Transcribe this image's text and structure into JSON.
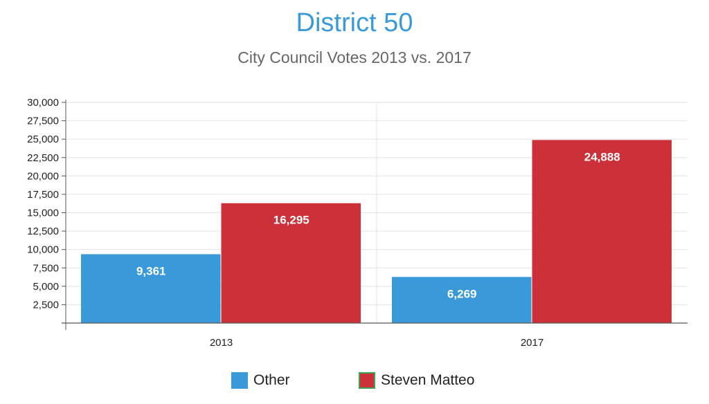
{
  "chart_data": {
    "type": "bar",
    "title": "District 50",
    "subtitle": "City Council Votes 2013 vs. 2017",
    "categories": [
      "2013",
      "2017"
    ],
    "series": [
      {
        "name": "Other",
        "values": [
          9361,
          6269
        ],
        "labels": [
          "9,361",
          "6,269"
        ],
        "color": "#3a9ad9"
      },
      {
        "name": "Steven Matteo",
        "values": [
          16295,
          24888
        ],
        "labels": [
          "16,295",
          "24,888"
        ],
        "color": "#cc3038"
      }
    ],
    "ylim": [
      0,
      30000
    ],
    "yticks": [
      2500,
      5000,
      7500,
      10000,
      12500,
      15000,
      17500,
      20000,
      22500,
      25000,
      27500,
      30000
    ],
    "ytick_labels": [
      "2,500",
      "5,000",
      "7,500",
      "10,000",
      "12,500",
      "15,000",
      "17,500",
      "20,000",
      "22,500",
      "25,000",
      "27,500",
      "30,000"
    ],
    "grid": true,
    "legend_position": "bottom-center",
    "xlabel": "",
    "ylabel": ""
  }
}
